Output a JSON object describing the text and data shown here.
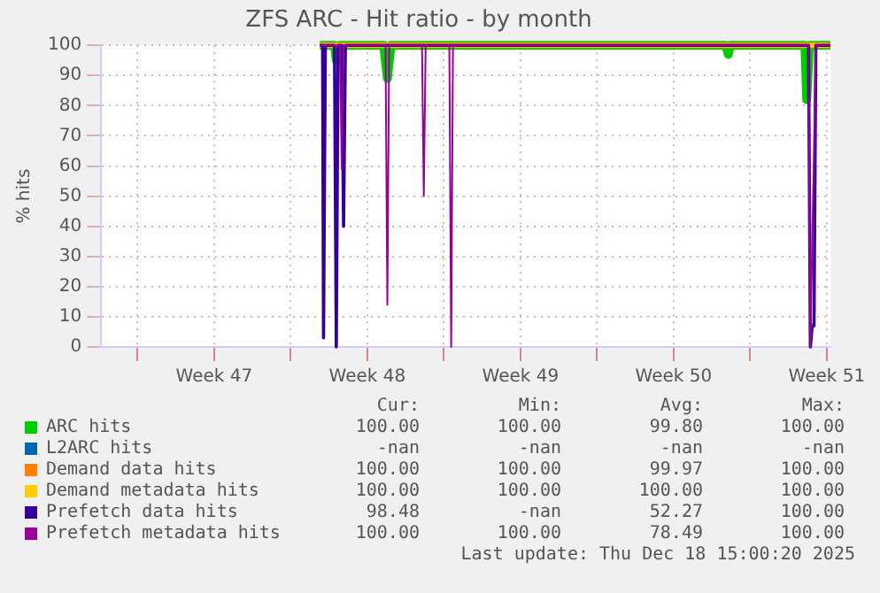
{
  "chart_data": {
    "type": "line",
    "title": "ZFS ARC - Hit ratio - by month",
    "ylabel": "% hits",
    "xlim": [
      "2025-11-15T08:00",
      "2025-12-18T16:00"
    ],
    "ylim": [
      0,
      100
    ],
    "xticks": [
      {
        "value": "2025-11-17",
        "label": null
      },
      {
        "value": "2025-11-20T12:00",
        "label": "Week 47"
      },
      {
        "value": "2025-11-24",
        "label": null
      },
      {
        "value": "2025-11-27T12:00",
        "label": "Week 48"
      },
      {
        "value": "2025-12-01",
        "label": null
      },
      {
        "value": "2025-12-04T12:00",
        "label": "Week 49"
      },
      {
        "value": "2025-12-08",
        "label": null
      },
      {
        "value": "2025-12-11T12:00",
        "label": "Week 50"
      },
      {
        "value": "2025-12-15",
        "label": null
      },
      {
        "value": "2025-12-18T12:00",
        "label": "Week 51"
      }
    ],
    "yticks": [
      0,
      10,
      20,
      30,
      40,
      50,
      60,
      70,
      80,
      90,
      100
    ],
    "grid": true,
    "legend": "bottom",
    "marker": "none",
    "line_style": "solid",
    "series": [
      {
        "name": "ARC hits",
        "color": "#00cc00",
        "x": [
          "2025-11-25T08:00",
          "2025-11-26T00:00",
          "2025-11-26T02:00",
          "2025-11-26T06:00",
          "2025-11-28T06:00",
          "2025-11-28T10:00",
          "2025-11-28T14:00",
          "2025-12-13T21:00",
          "2025-12-14T00:00",
          "2025-12-14T02:00",
          "2025-12-17T12:00",
          "2025-12-17T14:00",
          "2025-12-17T17:00",
          "2025-12-18T16:00"
        ],
        "values": [
          100,
          100,
          95,
          100,
          100,
          89,
          100,
          100,
          97,
          100,
          100,
          82,
          100,
          100
        ]
      },
      {
        "name": "L2ARC hits",
        "color": "#0066b3"
      },
      {
        "name": "Demand data hits",
        "color": "#ff8000",
        "x": [
          "2025-11-25T08:00",
          "2025-12-06T00:00",
          "2025-12-18T16:00"
        ],
        "values": [
          100,
          100,
          100
        ]
      },
      {
        "name": "Demand metadata hits",
        "color": "#ffcc00",
        "x": [
          "2025-11-25T08:00",
          "2025-12-06T00:00",
          "2025-12-18T16:00"
        ],
        "values": [
          100,
          100,
          100
        ]
      },
      {
        "name": "Prefetch data hits",
        "color": "#330099",
        "x": [
          "2025-11-25T08:00",
          "2025-11-25T11:00",
          "2025-11-25T12:00",
          "2025-11-25T14:00",
          "2025-11-26T00:00",
          "2025-11-26T02:00",
          "2025-11-26T04:00",
          "2025-11-26T08:00",
          "2025-11-26T10:00",
          "2025-11-26T12:00",
          "2025-12-17T16:00",
          "2025-12-17T18:00",
          "2025-12-17T20:00",
          "2025-12-17T22:00",
          "2025-12-18T00:00",
          "2025-12-18T16:00"
        ],
        "values": [
          100,
          100,
          3,
          100,
          100,
          0,
          100,
          100,
          40,
          100,
          100,
          0,
          7,
          7,
          100,
          100
        ]
      },
      {
        "name": "Prefetch metadata hits",
        "color": "#990099",
        "x": [
          "2025-11-25T08:00",
          "2025-11-26T06:00",
          "2025-11-26T08:00",
          "2025-11-26T10:00",
          "2025-11-28T08:00",
          "2025-11-28T10:00",
          "2025-11-28T12:00",
          "2025-11-30T00:00",
          "2025-11-30T02:00",
          "2025-11-30T04:00",
          "2025-12-01T06:00",
          "2025-12-01T08:00",
          "2025-12-01T10:00",
          "2025-12-17T16:00",
          "2025-12-17T18:00",
          "2025-12-18T00:00",
          "2025-12-18T16:00"
        ],
        "values": [
          100,
          100,
          59,
          100,
          100,
          14,
          100,
          100,
          50,
          100,
          100,
          0,
          100,
          100,
          0,
          100,
          100
        ]
      }
    ],
    "annotations": [
      "Cur:",
      "Min:",
      "Avg:",
      "Max:",
      "100.00",
      "100.00",
      "99.80",
      "100.00",
      "-nan",
      "-nan",
      "-nan",
      "-nan",
      "100.00",
      "100.00",
      "99.97",
      "100.00",
      "100.00",
      "100.00",
      "100.00",
      "100.00",
      "98.48",
      "-nan",
      "52.27",
      "100.00",
      "100.00",
      "100.00",
      "78.49",
      "100.00",
      "Last update: Thu Dec 18 15:00:20 2025"
    ]
  }
}
